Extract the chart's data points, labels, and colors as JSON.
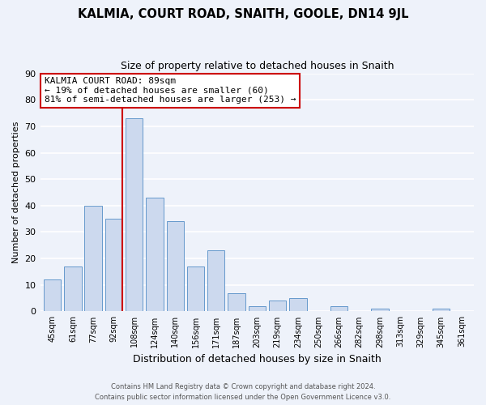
{
  "title": "KALMIA, COURT ROAD, SNAITH, GOOLE, DN14 9JL",
  "subtitle": "Size of property relative to detached houses in Snaith",
  "xlabel": "Distribution of detached houses by size in Snaith",
  "ylabel": "Number of detached properties",
  "bar_labels": [
    "45sqm",
    "61sqm",
    "77sqm",
    "92sqm",
    "108sqm",
    "124sqm",
    "140sqm",
    "156sqm",
    "171sqm",
    "187sqm",
    "203sqm",
    "219sqm",
    "234sqm",
    "250sqm",
    "266sqm",
    "282sqm",
    "298sqm",
    "313sqm",
    "329sqm",
    "345sqm",
    "361sqm"
  ],
  "bar_heights": [
    12,
    17,
    40,
    35,
    73,
    43,
    34,
    17,
    23,
    7,
    2,
    4,
    5,
    0,
    2,
    0,
    1,
    0,
    0,
    1,
    0
  ],
  "bar_color": "#ccd9ee",
  "bar_edge_color": "#6699cc",
  "vline_color": "#cc0000",
  "annotation_title": "KALMIA COURT ROAD: 89sqm",
  "annotation_line1": "← 19% of detached houses are smaller (60)",
  "annotation_line2": "81% of semi-detached houses are larger (253) →",
  "ylim": [
    0,
    90
  ],
  "yticks": [
    0,
    10,
    20,
    30,
    40,
    50,
    60,
    70,
    80,
    90
  ],
  "footer1": "Contains HM Land Registry data © Crown copyright and database right 2024.",
  "footer2": "Contains public sector information licensed under the Open Government Licence v3.0.",
  "background_color": "#eef2fa"
}
